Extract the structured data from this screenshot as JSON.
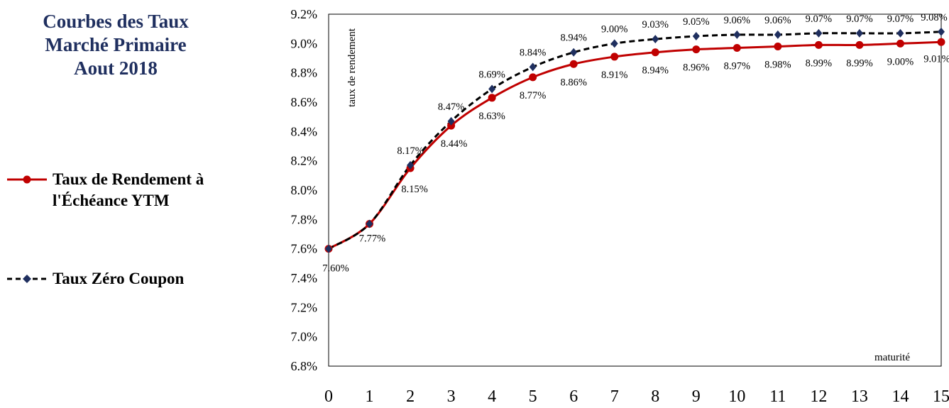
{
  "title": [
    "Courbes des Taux",
    "Marché Primaire",
    "Aout 2018"
  ],
  "legend": [
    {
      "label": "Taux de Rendement à\nl'Échéance YTM",
      "color": "#C00000",
      "marker": "circle",
      "line": "solid"
    },
    {
      "label": "Taux Zéro Coupon",
      "color": "#000000",
      "marker_color": "#1F2F5F",
      "marker": "diamond",
      "line": "dashed"
    }
  ],
  "colors": {
    "title": "#1F2F5F",
    "ytm": "#C00000",
    "zc_line": "#000000",
    "zc_marker": "#1F2F5F"
  },
  "chart_data": {
    "type": "line",
    "title": "Courbes des Taux Marché Primaire Aout 2018",
    "xlabel": "maturité",
    "ylabel": "taux de rendement",
    "x": [
      0,
      1,
      2,
      3,
      4,
      5,
      6,
      7,
      8,
      9,
      10,
      11,
      12,
      13,
      14,
      15
    ],
    "xlim": [
      0,
      15
    ],
    "ylim": [
      6.8,
      9.2
    ],
    "ytick_step": 0.2,
    "y_format": "percent, 1 decimal",
    "grid": false,
    "legend_position": "left",
    "series": [
      {
        "name": "Taux de Rendement à l'Échéance YTM",
        "values": [
          7.6,
          7.77,
          8.15,
          8.44,
          8.63,
          8.77,
          8.86,
          8.91,
          8.94,
          8.96,
          8.97,
          8.98,
          8.99,
          8.99,
          9.0,
          9.01
        ],
        "labels": [
          "7.60%",
          "7.77%",
          "8.15%",
          "8.44%",
          "8.63%",
          "8.77%",
          "8.86%",
          "8.91%",
          "8.94%",
          "8.96%",
          "8.97%",
          "8.98%",
          "8.99%",
          "8.99%",
          "9.00%",
          "9.01%"
        ]
      },
      {
        "name": "Taux Zéro Coupon",
        "values": [
          7.6,
          7.77,
          8.17,
          8.47,
          8.69,
          8.84,
          8.94,
          9.0,
          9.03,
          9.05,
          9.06,
          9.06,
          9.07,
          9.07,
          9.07,
          9.08
        ],
        "labels": [
          "",
          "",
          "8.17%",
          "8.47%",
          "8.69%",
          "8.84%",
          "8.94%",
          "9.00%",
          "9.03%",
          "9.05%",
          "9.06%",
          "9.06%",
          "9.07%",
          "9.07%",
          "9.07%",
          "9.08%"
        ]
      }
    ]
  }
}
